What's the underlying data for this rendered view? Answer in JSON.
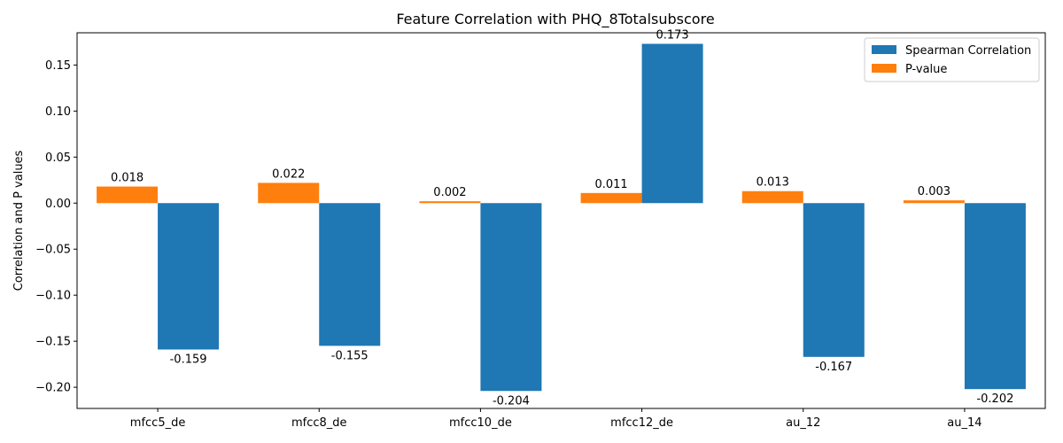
{
  "chart_data": {
    "type": "bar",
    "title": "Feature Correlation with PHQ_8Totalsubscore",
    "xlabel": "",
    "ylabel": "Correlation and P values",
    "categories": [
      "mfcc5_de",
      "mfcc8_de",
      "mfcc10_de",
      "mfcc12_de",
      "au_12",
      "au_14"
    ],
    "series": [
      {
        "name": "P-value",
        "color": "#ff7f0e",
        "values": [
          0.018,
          0.022,
          0.002,
          0.011,
          0.013,
          0.003
        ]
      },
      {
        "name": "Spearman Correlation",
        "color": "#1f77b4",
        "values": [
          -0.159,
          -0.155,
          -0.204,
          0.173,
          -0.167,
          -0.202
        ]
      }
    ],
    "data_labels": {
      "P-value": [
        "0.018",
        "0.022",
        "0.002",
        "0.011",
        "0.013",
        "0.003"
      ],
      "Spearman Correlation": [
        "-0.159",
        "-0.155",
        "-0.204",
        "0.173",
        "-0.167",
        "-0.202"
      ]
    },
    "ylim": [
      -0.223,
      0.185
    ],
    "yticks": [
      -0.2,
      -0.15,
      -0.1,
      -0.05,
      0.0,
      0.05,
      0.1,
      0.15
    ],
    "ytick_labels": [
      "−0.20",
      "−0.15",
      "−0.10",
      "−0.05",
      "0.00",
      "0.05",
      "0.10",
      "0.15"
    ],
    "grid": false,
    "legend": {
      "placement": "top-right",
      "entries": [
        {
          "label": "Spearman Correlation",
          "color": "#1f77b4"
        },
        {
          "label": "P-value",
          "color": "#ff7f0e"
        }
      ]
    }
  }
}
